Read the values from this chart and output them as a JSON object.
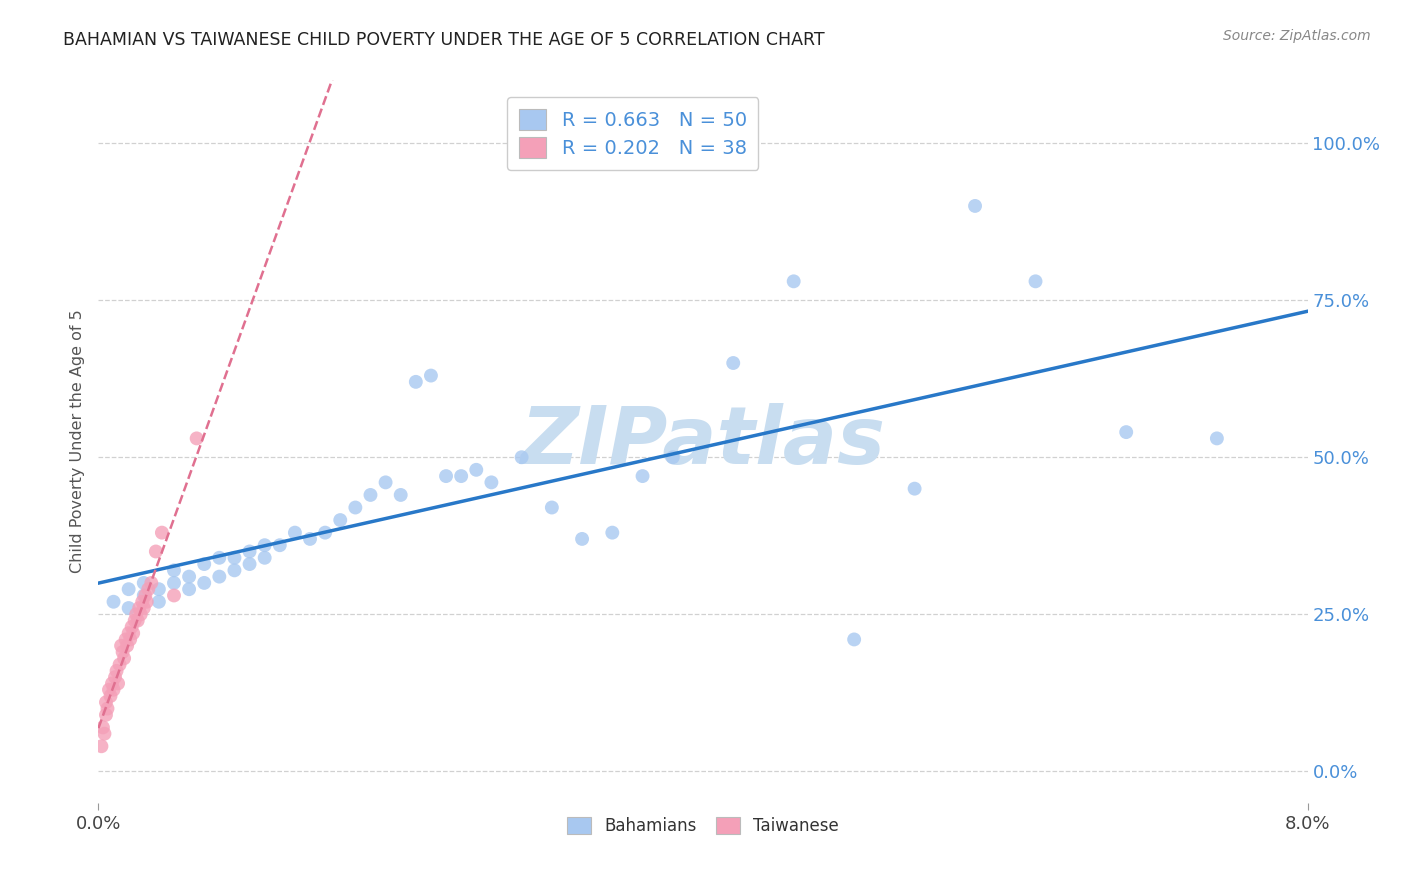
{
  "title": "BAHAMIAN VS TAIWANESE CHILD POVERTY UNDER THE AGE OF 5 CORRELATION CHART",
  "source": "Source: ZipAtlas.com",
  "ylabel": "Child Poverty Under the Age of 5",
  "ytick_labels": [
    "0.0%",
    "25.0%",
    "50.0%",
    "75.0%",
    "100.0%"
  ],
  "ytick_values": [
    0.0,
    0.25,
    0.5,
    0.75,
    1.0
  ],
  "xlim": [
    0.0,
    0.08
  ],
  "ylim": [
    -0.05,
    1.1
  ],
  "bahamian_R": 0.663,
  "bahamian_N": 50,
  "taiwanese_R": 0.202,
  "taiwanese_N": 38,
  "bahamian_color": "#a8c8f0",
  "taiwanese_color": "#f4a0b8",
  "bahamian_line_color": "#2878c8",
  "taiwanese_line_color": "#e07090",
  "legend_text_color": "#4a90d9",
  "background_color": "#ffffff",
  "watermark_text": "ZIPatlas",
  "watermark_color": "#c8ddf0",
  "bahamian_x": [
    0.001,
    0.002,
    0.002,
    0.003,
    0.003,
    0.004,
    0.004,
    0.005,
    0.005,
    0.006,
    0.006,
    0.007,
    0.007,
    0.008,
    0.008,
    0.009,
    0.009,
    0.01,
    0.01,
    0.011,
    0.011,
    0.012,
    0.013,
    0.014,
    0.015,
    0.016,
    0.017,
    0.018,
    0.019,
    0.02,
    0.021,
    0.022,
    0.023,
    0.024,
    0.025,
    0.026,
    0.028,
    0.03,
    0.032,
    0.034,
    0.036,
    0.038,
    0.042,
    0.046,
    0.05,
    0.054,
    0.058,
    0.062,
    0.068,
    0.074
  ],
  "bahamian_y": [
    0.27,
    0.26,
    0.29,
    0.28,
    0.3,
    0.27,
    0.29,
    0.3,
    0.32,
    0.29,
    0.31,
    0.3,
    0.33,
    0.31,
    0.34,
    0.32,
    0.34,
    0.33,
    0.35,
    0.34,
    0.36,
    0.36,
    0.38,
    0.37,
    0.38,
    0.4,
    0.42,
    0.44,
    0.46,
    0.44,
    0.62,
    0.63,
    0.47,
    0.47,
    0.48,
    0.46,
    0.5,
    0.42,
    0.37,
    0.38,
    0.47,
    0.5,
    0.65,
    0.78,
    0.21,
    0.45,
    0.9,
    0.78,
    0.54,
    0.53
  ],
  "taiwanese_x": [
    0.0002,
    0.0003,
    0.0004,
    0.0005,
    0.0005,
    0.0006,
    0.0007,
    0.0008,
    0.0009,
    0.001,
    0.0011,
    0.0012,
    0.0013,
    0.0014,
    0.0015,
    0.0016,
    0.0017,
    0.0018,
    0.0019,
    0.002,
    0.0021,
    0.0022,
    0.0023,
    0.0024,
    0.0025,
    0.0026,
    0.0027,
    0.0028,
    0.0029,
    0.003,
    0.0031,
    0.0032,
    0.0033,
    0.0035,
    0.0038,
    0.0042,
    0.005,
    0.0065
  ],
  "taiwanese_y": [
    0.04,
    0.07,
    0.06,
    0.09,
    0.11,
    0.1,
    0.13,
    0.12,
    0.14,
    0.13,
    0.15,
    0.16,
    0.14,
    0.17,
    0.2,
    0.19,
    0.18,
    0.21,
    0.2,
    0.22,
    0.21,
    0.23,
    0.22,
    0.24,
    0.25,
    0.24,
    0.26,
    0.25,
    0.27,
    0.26,
    0.28,
    0.27,
    0.29,
    0.3,
    0.35,
    0.38,
    0.28,
    0.53
  ]
}
